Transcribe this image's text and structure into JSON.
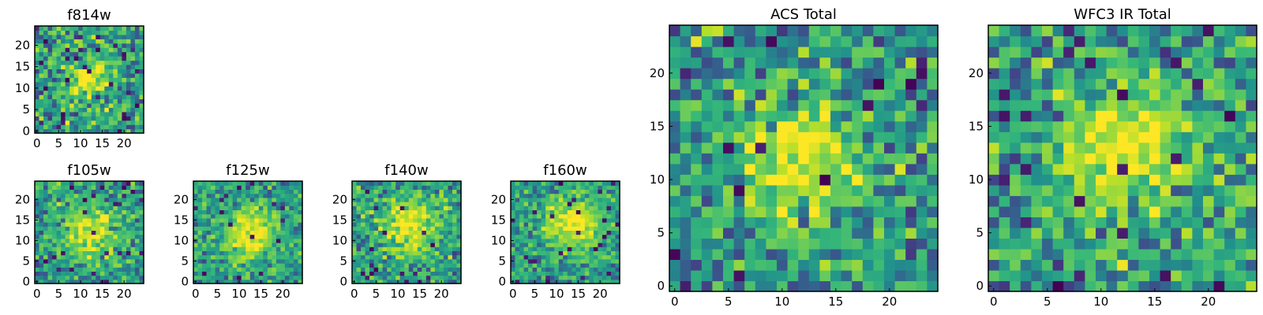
{
  "figure": {
    "description_colormap": "viridis",
    "grid_size": 25
  },
  "chart_data": [
    {
      "type": "heatmap",
      "title": "f814w",
      "colormap": "viridis",
      "xlim": [
        0,
        24
      ],
      "ylim": [
        0,
        24
      ],
      "xticks": [
        0,
        5,
        10,
        15,
        20
      ],
      "yticks": [
        0,
        5,
        10,
        15,
        20
      ],
      "xlabel": "",
      "ylabel": "",
      "source_center": [
        12,
        12
      ],
      "source_width": 3.0,
      "noise_level": 0.6,
      "seed": 11
    },
    {
      "type": "heatmap",
      "title": "f105w",
      "colormap": "viridis",
      "xlim": [
        0,
        24
      ],
      "ylim": [
        0,
        24
      ],
      "xticks": [
        0,
        5,
        10,
        15,
        20
      ],
      "yticks": [
        0,
        5,
        10,
        15,
        20
      ],
      "xlabel": "",
      "ylabel": "",
      "source_center": [
        12,
        12
      ],
      "source_width": 4.0,
      "noise_level": 0.5,
      "seed": 23
    },
    {
      "type": "heatmap",
      "title": "f125w",
      "colormap": "viridis",
      "xlim": [
        0,
        24
      ],
      "ylim": [
        0,
        24
      ],
      "xticks": [
        0,
        5,
        10,
        15,
        20
      ],
      "yticks": [
        0,
        5,
        10,
        15,
        20
      ],
      "xlabel": "",
      "ylabel": "",
      "source_center": [
        13,
        12
      ],
      "source_width": 4.5,
      "noise_level": 0.45,
      "seed": 37
    },
    {
      "type": "heatmap",
      "title": "f140w",
      "colormap": "viridis",
      "xlim": [
        0,
        24
      ],
      "ylim": [
        0,
        24
      ],
      "xticks": [
        0,
        5,
        10,
        15,
        20
      ],
      "yticks": [
        0,
        5,
        10,
        15,
        20
      ],
      "xlabel": "",
      "ylabel": "",
      "source_center": [
        13,
        14
      ],
      "source_width": 4.5,
      "noise_level": 0.5,
      "seed": 51
    },
    {
      "type": "heatmap",
      "title": "f160w",
      "colormap": "viridis",
      "xlim": [
        0,
        24
      ],
      "ylim": [
        0,
        24
      ],
      "xticks": [
        0,
        5,
        10,
        15,
        20
      ],
      "yticks": [
        0,
        5,
        10,
        15,
        20
      ],
      "xlabel": "",
      "ylabel": "",
      "source_center": [
        14,
        14
      ],
      "source_width": 4.5,
      "noise_level": 0.4,
      "seed": 67
    },
    {
      "type": "heatmap",
      "title": "ACS Total",
      "colormap": "viridis",
      "xlim": [
        0,
        24
      ],
      "ylim": [
        0,
        24
      ],
      "xticks": [
        0,
        5,
        10,
        15,
        20
      ],
      "yticks": [
        0,
        5,
        10,
        15,
        20
      ],
      "xlabel": "",
      "ylabel": "",
      "source_center": [
        12,
        12
      ],
      "source_width": 3.5,
      "noise_level": 0.55,
      "seed": 79
    },
    {
      "type": "heatmap",
      "title": "WFC3 IR Total",
      "colormap": "viridis",
      "xlim": [
        0,
        24
      ],
      "ylim": [
        0,
        24
      ],
      "xticks": [
        0,
        5,
        10,
        15,
        20
      ],
      "yticks": [
        0,
        5,
        10,
        15,
        20
      ],
      "xlabel": "",
      "ylabel": "",
      "source_center": [
        12,
        13
      ],
      "source_width": 4.0,
      "noise_level": 0.55,
      "seed": 97
    }
  ]
}
